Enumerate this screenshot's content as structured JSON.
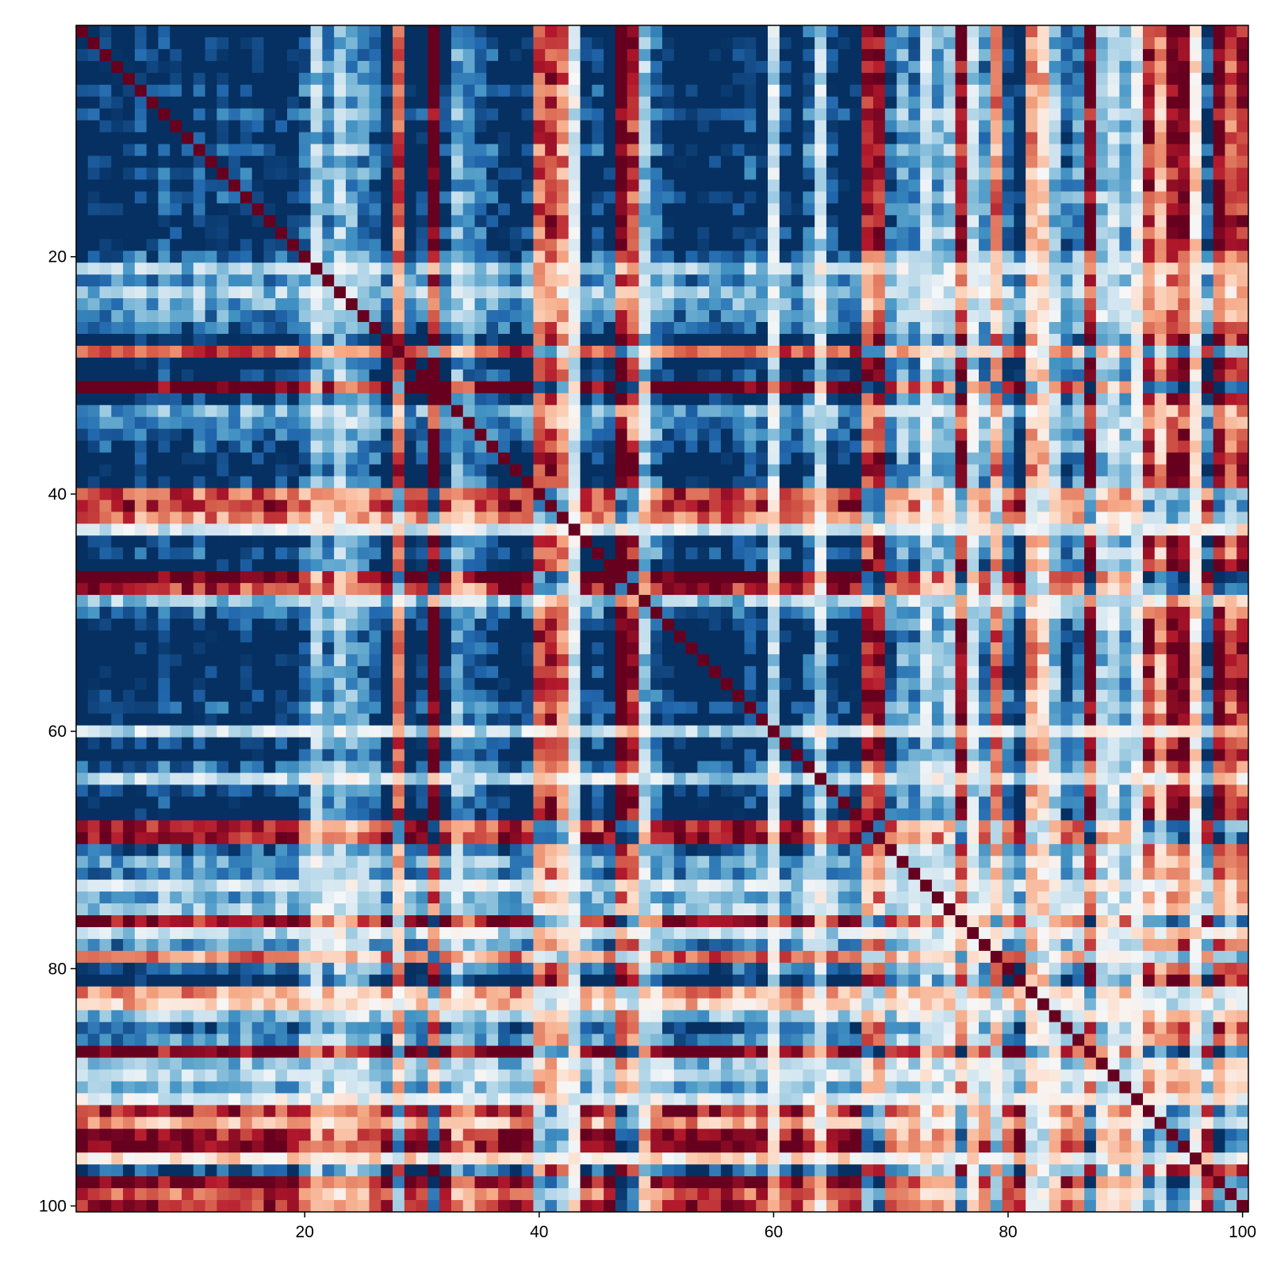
{
  "chart_data": {
    "type": "heatmap",
    "title": "",
    "xlabel": "",
    "ylabel": "",
    "rows": 100,
    "cols": 100,
    "xlim": [
      0.5,
      100.5
    ],
    "ylim": [
      0.5,
      100.5
    ],
    "y_axis_direction": "top-to-bottom",
    "x_ticks": [
      20,
      40,
      60,
      80,
      100
    ],
    "y_ticks": [
      20,
      40,
      60,
      80,
      100
    ],
    "x_tick_labels": [
      "20",
      "40",
      "60",
      "80",
      "100"
    ],
    "y_tick_labels": [
      "20",
      "40",
      "60",
      "80",
      "100"
    ],
    "color_range": [
      -1,
      1
    ],
    "colormap": "RdBu (diverging, blue = low, red = high)",
    "colormap_stops": [
      "#67001f",
      "#b2182b",
      "#d6604d",
      "#f4a582",
      "#fddbc7",
      "#f7f7f7",
      "#d1e5f0",
      "#92c5de",
      "#4393c3",
      "#2166ac",
      "#053061"
    ],
    "grid": false,
    "legend": "none",
    "pattern": "symmetric cross-correlation matrix",
    "row_pattern_values": [
      -0.9,
      -0.85,
      -0.8,
      -0.85,
      -0.9,
      -0.75,
      -0.85,
      -0.7,
      -0.8,
      -0.9,
      -0.7,
      -0.8,
      -0.75,
      -0.85,
      -0.7,
      -0.8,
      -0.85,
      -0.75,
      -0.8,
      -0.6,
      -0.3,
      -0.5,
      -0.3,
      -0.4,
      -0.5,
      -0.6,
      -0.9,
      0.5,
      -0.9,
      -0.8,
      0.9,
      -0.8,
      -0.4,
      -0.5,
      -0.6,
      -0.7,
      -0.8,
      -0.9,
      -0.8,
      0.5,
      0.6,
      0.4,
      -0.1,
      -0.8,
      -0.7,
      -0.9,
      0.9,
      0.6,
      -0.3,
      -0.6,
      -0.8,
      -0.9,
      -0.9,
      -0.9,
      -0.85,
      -0.9,
      -0.8,
      -0.7,
      -0.8,
      -0.2,
      -0.8,
      -0.9,
      -0.6,
      -0.2,
      -0.7,
      -0.85,
      -0.9,
      0.6,
      0.7,
      -0.6,
      -0.4,
      -0.5,
      -0.2,
      -0.4,
      -0.3,
      0.7,
      -0.2,
      -0.5,
      0.4,
      -0.6,
      -0.9,
      0.3,
      0.2,
      -0.3,
      -0.6,
      -0.5,
      0.8,
      -0.3,
      -0.2,
      -0.4,
      -0.1,
      0.6,
      0.3,
      0.7,
      0.8,
      0.1,
      -0.7,
      0.8,
      0.5,
      0.6
    ]
  }
}
